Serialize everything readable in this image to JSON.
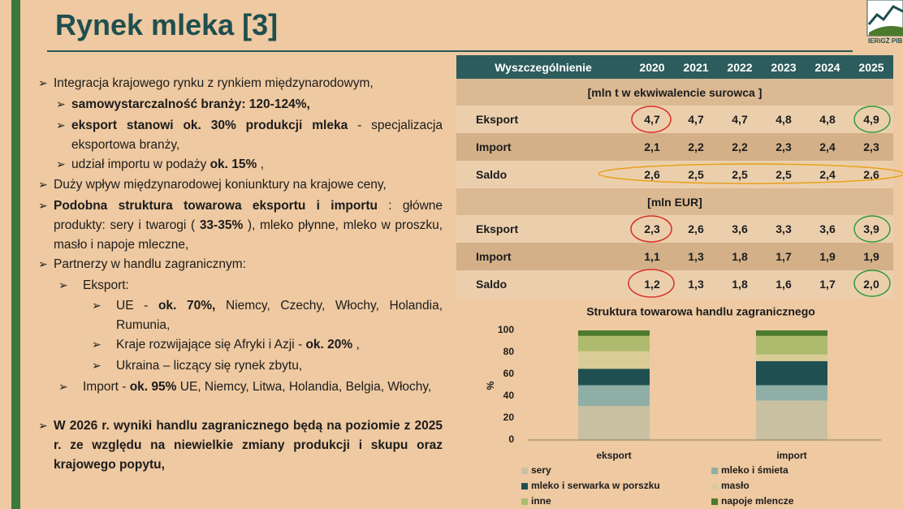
{
  "title": "Rynek mleka [3]",
  "logo_text": "IERiGŻ PIB",
  "bullets": [
    [
      "Integracja krajowego rynku z rynkiem międzynarodowym,"
    ],
    [
      "samowystarczalność branży: 120-124%,"
    ],
    [
      "eksport stanowi ok. 30% produkcji mleka",
      "- specjalizacja eksportowa branży,"
    ],
    [
      "udział importu w podaży",
      "ok. 15%",
      ","
    ],
    [
      "Duży wpływ międzynarodowej koniunktury na krajowe ceny,"
    ],
    [
      "Podobna struktura towarowa eksportu i importu",
      ": główne produkty: sery i twarogi (",
      "33-35%",
      "), mleko płynne, mleko w proszku, masło i napoje mleczne,"
    ],
    [
      "Partnerzy w handlu zagranicznym:"
    ],
    [
      "Eksport:"
    ],
    [
      "UE  -",
      "ok. 70%,",
      "Niemcy, Czechy, Włochy, Holandia, Rumunia,"
    ],
    [
      "Kraje rozwijające się Afryki i Azji -",
      "ok. 20%",
      ","
    ],
    [
      "Ukraina – liczący się rynek zbytu,"
    ],
    [
      "Import -",
      "ok. 95%",
      "UE, Niemcy, Litwa, Holandia, Belgia, Włochy,"
    ],
    [
      "W 2026 r. wyniki handlu zagranicznego będą na poziomie z 2025 r. ze względu na niewielkie zmiany produkcji i skupu oraz krajowego popytu,"
    ]
  ],
  "table": {
    "header": [
      "Wyszczególnienie",
      "2020",
      "2021",
      "2022",
      "2023",
      "2024",
      "2025"
    ],
    "sections": [
      {
        "unit": "[mln t w ekwiwalencie surowca ]",
        "rows": [
          [
            "Eksport",
            "4,7",
            "4,7",
            "4,7",
            "4,8",
            "4,8",
            "4,9"
          ],
          [
            "Import",
            "2,1",
            "2,2",
            "2,2",
            "2,3",
            "2,4",
            "2,3"
          ],
          [
            "Saldo",
            "2,6",
            "2,5",
            "2,5",
            "2,5",
            "2,4",
            "2,6"
          ]
        ]
      },
      {
        "unit": "[mln EUR]",
        "rows": [
          [
            "Eksport",
            "2,3",
            "2,6",
            "3,6",
            "3,3",
            "3,6",
            "3,9"
          ],
          [
            "Import",
            "1,1",
            "1,3",
            "1,8",
            "1,7",
            "1,9",
            "1,9"
          ],
          [
            "Saldo",
            "1,2",
            "1,3",
            "1,8",
            "1,6",
            "1,7",
            "2,0"
          ]
        ]
      }
    ]
  },
  "chart_data": {
    "type": "stacked_bar",
    "title": "Struktura towarowa handlu zagranicznego",
    "y_label": "%",
    "categories": [
      "eksport",
      "import"
    ],
    "series": [
      {
        "name": "sery",
        "color": "#c9c0a2",
        "values": [
          31,
          36
        ]
      },
      {
        "name": "mleko i śmieta",
        "color": "#8fafa6",
        "values": [
          19,
          14
        ]
      },
      {
        "name": "mleko i serwarka w porszku",
        "color": "#1f4f50",
        "values": [
          15,
          22
        ]
      },
      {
        "name": "masło",
        "color": "#d9cc96",
        "values": [
          16,
          6
        ]
      },
      {
        "name": "inne",
        "color": "#aebb6e",
        "values": [
          14,
          17
        ]
      },
      {
        "name": "napoje mlencze",
        "color": "#4c7a2c",
        "values": [
          5,
          5
        ]
      }
    ],
    "ylim": [
      0,
      100
    ],
    "yticks": [
      0,
      20,
      40,
      60,
      80,
      100
    ]
  }
}
